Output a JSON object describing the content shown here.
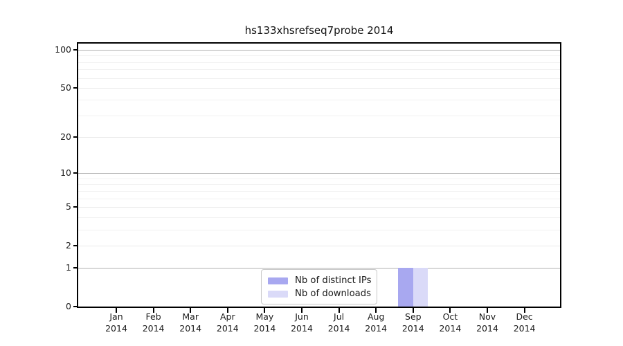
{
  "chart_data": {
    "type": "bar",
    "title": "hs133xhsrefseq7probe 2014",
    "categories": [
      "Jan 2014",
      "Feb 2014",
      "Mar 2014",
      "Apr 2014",
      "May 2014",
      "Jun 2014",
      "Jul 2014",
      "Aug 2014",
      "Sep 2014",
      "Oct 2014",
      "Nov 2014",
      "Dec 2014"
    ],
    "x_months": [
      "Jan",
      "Feb",
      "Mar",
      "Apr",
      "May",
      "Jun",
      "Jul",
      "Aug",
      "Sep",
      "Oct",
      "Nov",
      "Dec"
    ],
    "x_year": "2014",
    "series": [
      {
        "name": "Nb of distinct IPs",
        "color": "#a8a8f0",
        "values": [
          0,
          0,
          0,
          0,
          0,
          0,
          0,
          0,
          1,
          0,
          0,
          0
        ]
      },
      {
        "name": "Nb of downloads",
        "color": "#dadaf8",
        "values": [
          0,
          0,
          0,
          0,
          0,
          0,
          0,
          0,
          1,
          0,
          0,
          0
        ]
      }
    ],
    "y_axis": {
      "scale": "log1p",
      "min": 0,
      "max": 112,
      "ticks": [
        0,
        1,
        2,
        5,
        10,
        20,
        50,
        100
      ],
      "minor_ticks": [
        3,
        4,
        6,
        7,
        8,
        9,
        30,
        40,
        60,
        70,
        80,
        90
      ],
      "major_gridlines": [
        1,
        10,
        100
      ]
    },
    "xlabel": "",
    "ylabel": "",
    "grid": true,
    "legend": {
      "position": "bottom-center",
      "entries": [
        "Nb of distinct IPs",
        "Nb of downloads"
      ]
    },
    "colors": {
      "axis": "#000000",
      "grid_major": "#b0b0b0",
      "grid_light": "#eaeaea",
      "grid_minor": "#f1f1f1",
      "text": "#1a1a1a",
      "background": "#ffffff"
    }
  }
}
